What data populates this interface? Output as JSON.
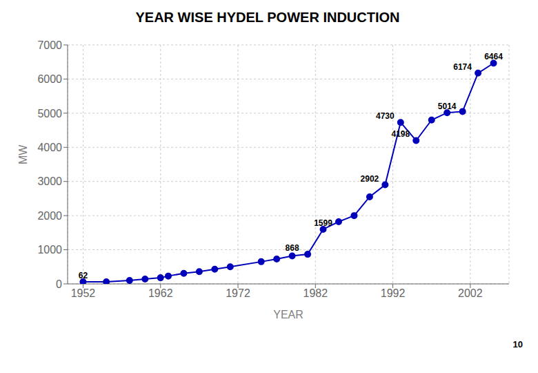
{
  "chart_data": {
    "type": "line",
    "title": "YEAR WISE HYDEL POWER INDUCTION",
    "xlabel": "YEAR",
    "ylabel": "MW",
    "x": [
      1952,
      1955,
      1958,
      1960,
      1962,
      1963,
      1965,
      1967,
      1969,
      1971,
      1975,
      1977,
      1979,
      1981,
      1983,
      1985,
      1987,
      1989,
      1991,
      1993,
      1995,
      1997,
      1999,
      2001,
      2003,
      2005
    ],
    "values": [
      62,
      62,
      100,
      140,
      180,
      230,
      310,
      360,
      430,
      500,
      650,
      730,
      820,
      868,
      1599,
      1820,
      2000,
      2550,
      2902,
      4730,
      4198,
      4800,
      5014,
      5050,
      6174,
      6464
    ],
    "color": "#0000bb",
    "marker": "circle",
    "xlim": [
      1950,
      2007
    ],
    "ylim": [
      0,
      7000
    ],
    "xticks": [
      1952,
      1962,
      1972,
      1982,
      1992,
      2002
    ],
    "yticks": [
      0,
      1000,
      2000,
      3000,
      4000,
      5000,
      6000,
      7000
    ],
    "grid": true,
    "annotations": [
      {
        "text": "62",
        "x": 1952,
        "y": 62
      },
      {
        "text": "868",
        "x": 1979,
        "y": 868
      },
      {
        "text": "1599",
        "x": 1983,
        "y": 1599
      },
      {
        "text": "2902",
        "x": 1989,
        "y": 2902
      },
      {
        "text": "4730",
        "x": 1991,
        "y": 4730
      },
      {
        "text": "4198",
        "x": 1993,
        "y": 4198
      },
      {
        "text": "5014",
        "x": 1999,
        "y": 5014
      },
      {
        "text": "6174",
        "x": 2001,
        "y": 6174
      },
      {
        "text": "6464",
        "x": 2005,
        "y": 6464
      }
    ],
    "footnote": "10"
  }
}
